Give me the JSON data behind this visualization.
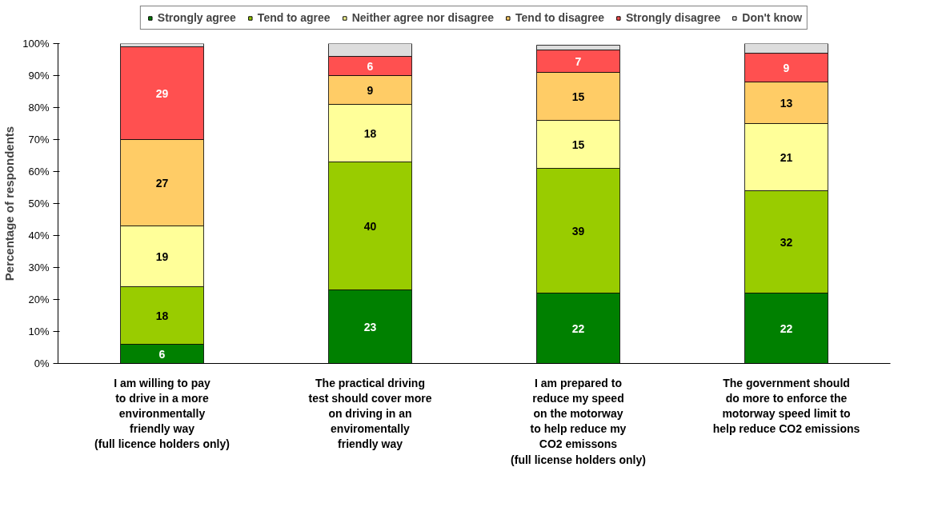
{
  "chart_data": {
    "type": "bar",
    "stacked": true,
    "ylabel": "Percentage of respondents",
    "categories": [
      "I am willing to pay\nto drive in a more\nenvironmentally\nfriendly way\n(full licence holders only)",
      "The practical driving\ntest should cover more\non driving in an\nenviromentally\nfriendly way",
      "I am prepared to\nreduce my speed\non the motorway\nto help reduce my\nCO2 emissons\n(full license holders only)",
      "The government should\ndo more to enforce the\nmotorway speed limit to\nhelp reduce CO2 emissions"
    ],
    "series": [
      {
        "name": "Strongly agree",
        "color": "#008000",
        "values": [
          6,
          23,
          22,
          22
        ],
        "value_labels": [
          "6",
          "23",
          "22",
          "22"
        ]
      },
      {
        "name": "Tend to agree",
        "color": "#99cc00",
        "values": [
          18,
          40,
          39,
          32
        ],
        "value_labels": [
          "18",
          "40",
          "39",
          "32"
        ]
      },
      {
        "name": "Neither agree nor disagree",
        "color": "#ffff99",
        "values": [
          19,
          18,
          15,
          21
        ],
        "value_labels": [
          "19",
          "18",
          "15",
          "21"
        ]
      },
      {
        "name": "Tend to disagree",
        "color": "#ffcc66",
        "values": [
          27,
          9,
          15,
          13
        ],
        "value_labels": [
          "27",
          "9",
          "15",
          "13"
        ]
      },
      {
        "name": "Strongly disagree",
        "color": "#ff5050",
        "values": [
          29,
          6,
          7,
          9
        ],
        "value_labels": [
          "29",
          "6",
          "7",
          "9"
        ]
      },
      {
        "name": "Don't know",
        "color": "#dddddd",
        "values": [
          1,
          4,
          1.5,
          3
        ]
      }
    ],
    "ylim": [
      0,
      100
    ],
    "yticks": [
      {
        "value": 0,
        "label": "0%"
      },
      {
        "value": 10,
        "label": "10%"
      },
      {
        "value": 20,
        "label": "20%"
      },
      {
        "value": 30,
        "label": "30%"
      },
      {
        "value": 40,
        "label": "40%"
      },
      {
        "value": 50,
        "label": "50%"
      },
      {
        "value": 60,
        "label": "60%"
      },
      {
        "value": 70,
        "label": "70%"
      },
      {
        "value": 80,
        "label": "80%"
      },
      {
        "value": 90,
        "label": "90%"
      },
      {
        "value": 100,
        "label": "100%"
      }
    ],
    "grid": false,
    "legend": "top"
  }
}
